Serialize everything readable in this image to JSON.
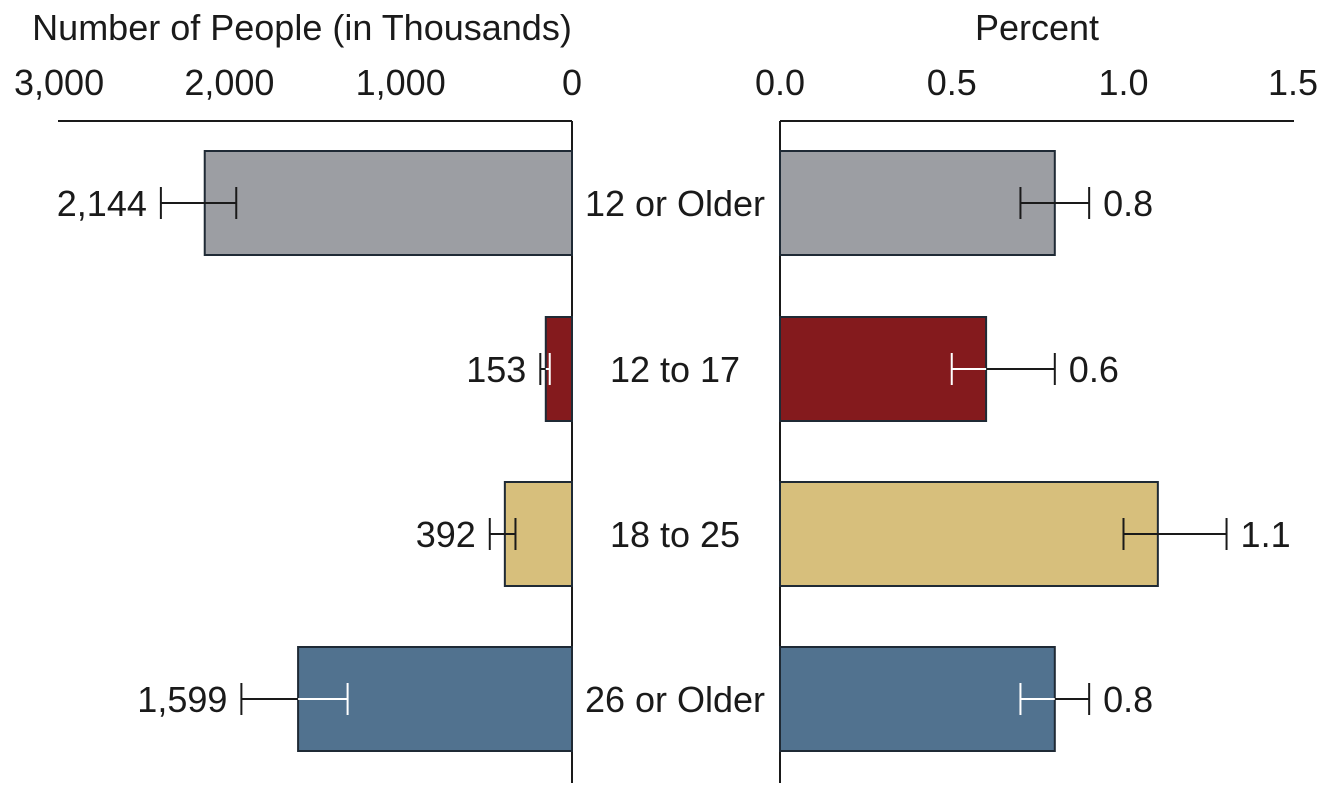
{
  "chart_data": [
    {
      "type": "bar",
      "orientation": "horizontal",
      "direction": "right-to-left",
      "title": "Number of People (in Thousands)",
      "categories": [
        "12 or Older",
        "12 to 17",
        "18 to 25",
        "26 or Older"
      ],
      "values": [
        2144,
        153,
        392,
        1599
      ],
      "value_labels": [
        "2,144",
        "153",
        "392",
        "1,599"
      ],
      "error_bars": [
        {
          "low": 1960,
          "high": 2400
        },
        {
          "low": 130,
          "high": 185
        },
        {
          "low": 330,
          "high": 480
        },
        {
          "low": 1310,
          "high": 1930
        }
      ],
      "xlim": [
        0,
        3000
      ],
      "ticks": [
        3000,
        2000,
        1000,
        0
      ],
      "tick_labels": [
        "3,000",
        "2,000",
        "1,000",
        "0"
      ],
      "grid": false
    },
    {
      "type": "bar",
      "orientation": "horizontal",
      "title": "Percent",
      "categories": [
        "12 or Older",
        "12 to 17",
        "18 to 25",
        "26 or Older"
      ],
      "values": [
        0.8,
        0.6,
        1.1,
        0.8
      ],
      "value_labels": [
        "0.8",
        "0.6",
        "1.1",
        "0.8"
      ],
      "error_bars": [
        {
          "low": 0.7,
          "high": 0.9
        },
        {
          "low": 0.5,
          "high": 0.8
        },
        {
          "low": 1.0,
          "high": 1.3
        },
        {
          "low": 0.7,
          "high": 0.9
        }
      ],
      "xlim": [
        0,
        1.5
      ],
      "ticks": [
        0.0,
        0.5,
        1.0,
        1.5
      ],
      "tick_labels": [
        "0.0",
        "0.5",
        "1.0",
        "1.5"
      ],
      "grid": false
    }
  ],
  "colors": {
    "bars": [
      "#9c9ea3",
      "#841a1d",
      "#d7bf7c",
      "#51728f"
    ],
    "outline": "#1f2a35",
    "axis": "#1a1a1a",
    "errorbar_dark": "#1a1a1a",
    "errorbar_light": "#ffffff"
  },
  "errorbar_tone": [
    {
      "left": "dark",
      "right": "dark"
    },
    {
      "left": "light",
      "right": "light"
    },
    {
      "left": "dark",
      "right": "dark"
    },
    {
      "left": "light",
      "right": "light"
    }
  ]
}
